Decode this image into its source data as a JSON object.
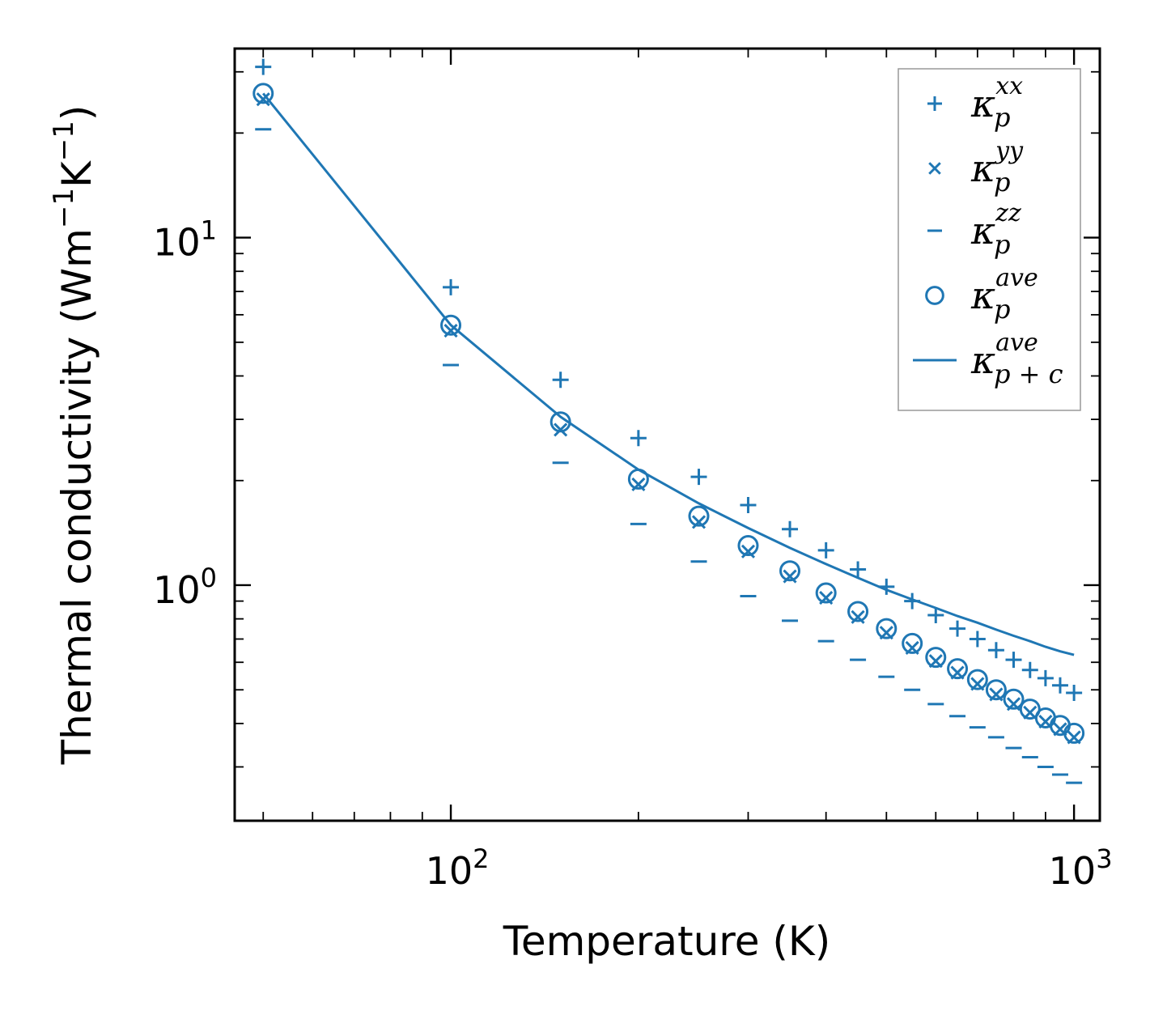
{
  "chart_data": {
    "type": "scatter",
    "xscale": "log",
    "yscale": "log",
    "xlim": [
      45,
      1100
    ],
    "ylim": [
      0.21,
      35
    ],
    "xlabel": "Temperature (K)",
    "ylabel_parts": {
      "main": "Thermal conductivity (Wm",
      "exp1": "−1",
      "mid": "K",
      "exp2": "−1",
      "end": ")"
    },
    "x_ticks": [
      {
        "value": 100,
        "base": "10",
        "exp": "2"
      },
      {
        "value": 1000,
        "base": "10",
        "exp": "3"
      }
    ],
    "y_ticks": [
      {
        "value": 1,
        "base": "10",
        "exp": "0"
      },
      {
        "value": 10,
        "base": "10",
        "exp": "1"
      }
    ],
    "x": [
      50,
      100,
      150,
      200,
      250,
      300,
      350,
      400,
      450,
      500,
      550,
      600,
      650,
      700,
      750,
      800,
      850,
      900,
      950,
      1000
    ],
    "series": [
      {
        "name": "kappa_p_xx",
        "marker": "plus",
        "legend": {
          "base": "κ",
          "sup": "xx",
          "sub": "p"
        },
        "values": [
          31,
          7.2,
          3.9,
          2.65,
          2.05,
          1.7,
          1.45,
          1.26,
          1.11,
          0.99,
          0.9,
          0.82,
          0.75,
          0.7,
          0.65,
          0.61,
          0.57,
          0.54,
          0.515,
          0.49
        ]
      },
      {
        "name": "kappa_p_yy",
        "marker": "x",
        "legend": {
          "base": "κ",
          "sup": "yy",
          "sub": "p"
        },
        "values": [
          25,
          5.4,
          2.8,
          1.95,
          1.52,
          1.25,
          1.06,
          0.92,
          0.81,
          0.73,
          0.66,
          0.605,
          0.56,
          0.52,
          0.485,
          0.455,
          0.43,
          0.405,
          0.385,
          0.365
        ]
      },
      {
        "name": "kappa_p_zz",
        "marker": "minus",
        "legend": {
          "base": "κ",
          "sup": "zz",
          "sub": "p"
        },
        "values": [
          20.5,
          4.3,
          2.25,
          1.5,
          1.17,
          0.93,
          0.79,
          0.69,
          0.61,
          0.545,
          0.5,
          0.455,
          0.42,
          0.39,
          0.365,
          0.34,
          0.32,
          0.3,
          0.285,
          0.27
        ]
      },
      {
        "name": "kappa_p_ave",
        "marker": "circle",
        "legend": {
          "base": "κ",
          "sup": "ave",
          "sub": "p"
        },
        "values": [
          26,
          5.6,
          2.95,
          2.02,
          1.58,
          1.3,
          1.1,
          0.95,
          0.84,
          0.75,
          0.68,
          0.62,
          0.575,
          0.535,
          0.5,
          0.47,
          0.44,
          0.415,
          0.395,
          0.375
        ]
      },
      {
        "name": "kappa_p_plus_c_ave",
        "marker": "line",
        "legend": {
          "base": "κ",
          "sup": "ave",
          "sub": "p + c"
        },
        "values": [
          26,
          5.6,
          3.05,
          2.15,
          1.72,
          1.46,
          1.28,
          1.15,
          1.05,
          0.97,
          0.91,
          0.86,
          0.815,
          0.78,
          0.745,
          0.715,
          0.69,
          0.665,
          0.645,
          0.63
        ]
      }
    ],
    "legend_position": "top-right",
    "color": "#1f77b4",
    "grid": false
  }
}
